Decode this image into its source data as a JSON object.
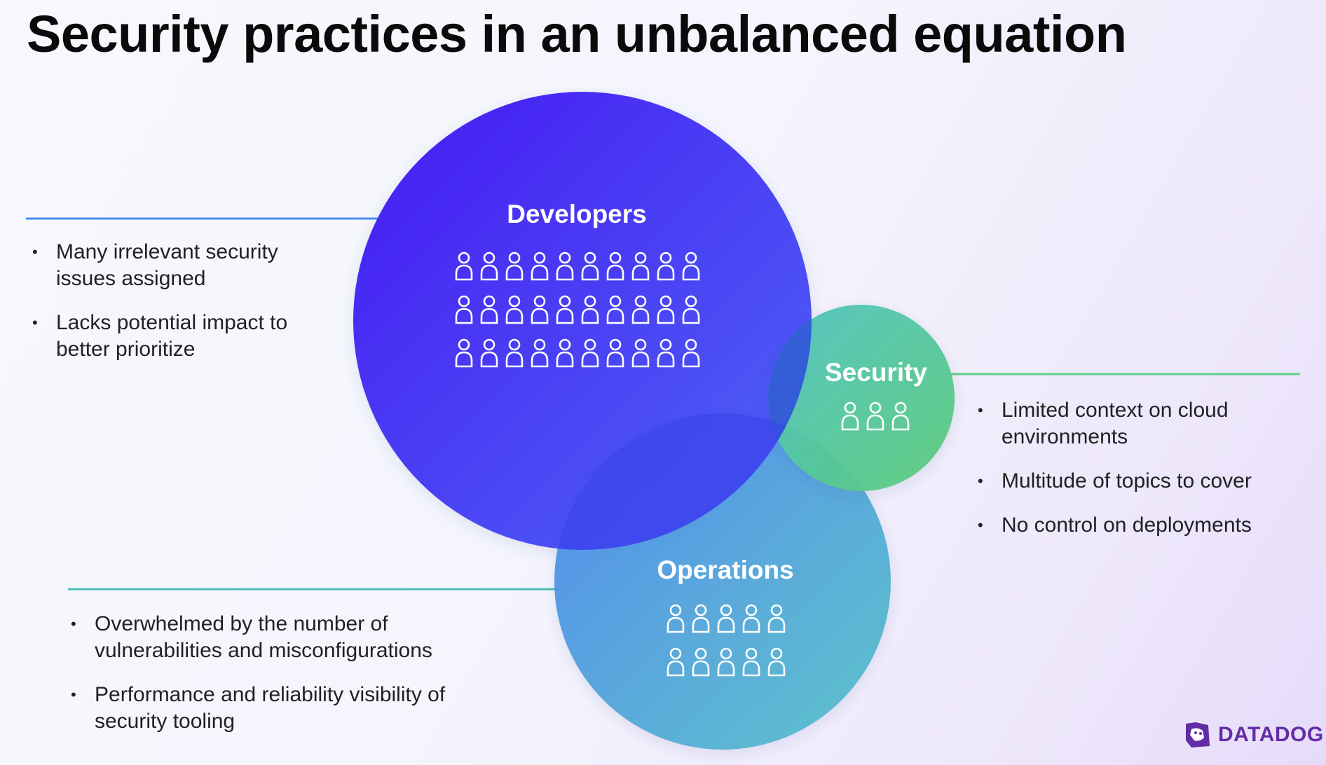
{
  "title": "Security practices in an unbalanced equation",
  "colors": {
    "developers_gradient": [
      "#4519f4",
      "#4f66f5"
    ],
    "security_gradient": [
      "#4ec3c2",
      "#5dcc7a"
    ],
    "operations_gradient": [
      "#4d86ef",
      "#56c2c8"
    ],
    "developers_line": "#4a8cf0",
    "security_line": "#5fcf88",
    "operations_line": "#4dbfb9",
    "brand": "#632ca6"
  },
  "groups": {
    "developers": {
      "label": "Developers",
      "people_icon": "person-icon",
      "people_rows": 3,
      "people_per_row": 10,
      "notes": [
        "Many irrelevant security issues assigned",
        "Lacks potential impact to better prioritize"
      ]
    },
    "security": {
      "label": "Security",
      "people_icon": "person-icon",
      "people_rows": 1,
      "people_per_row": 3,
      "notes": [
        "Limited context on cloud environments",
        "Multitude of topics to cover",
        "No control on deployments"
      ]
    },
    "operations": {
      "label": "Operations",
      "people_icon": "person-icon",
      "people_rows": 2,
      "people_per_row": 5,
      "notes": [
        "Overwhelmed by the number of vulnerabilities and misconfigurations",
        "Performance and reliability visibility of security tooling"
      ]
    }
  },
  "brand": {
    "name": "DATADOG",
    "icon": "datadog-dog-icon"
  }
}
